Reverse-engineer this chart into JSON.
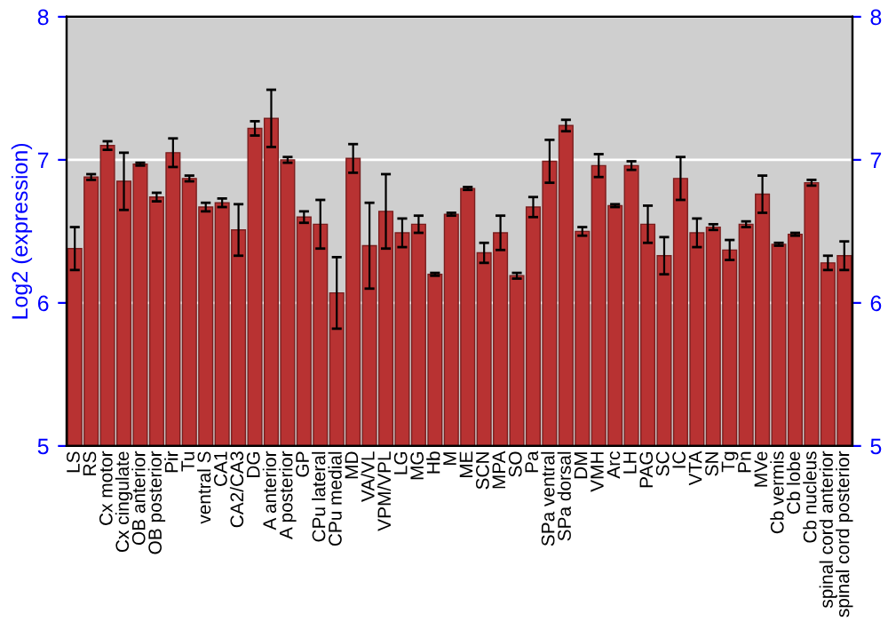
{
  "chart_data": {
    "type": "bar",
    "ylabel": "Log2 (expression)",
    "categories": [
      "LS",
      "RS",
      "Cx motor",
      "Cx cingulate",
      "OB anterior",
      "OB posterior",
      "Pir",
      "Tu",
      "ventral S",
      "CA1",
      "CA2/CA3",
      "DG",
      "A anterior",
      "A posterior",
      "GP",
      "CPu lateral",
      "CPu medial",
      "MD",
      "VA/VL",
      "VPM/VPL",
      "LG",
      "MG",
      "Hb",
      "M",
      "ME",
      "SCN",
      "MPA",
      "SO",
      "Pa",
      "SPa ventral",
      "SPa dorsal",
      "DM",
      "VMH",
      "Arc",
      "LH",
      "PAG",
      "SC",
      "IC",
      "VTA",
      "SN",
      "Tg",
      "Pn",
      "MVe",
      "Cb vermis",
      "Cb lobe",
      "Cb nucleus",
      "spinal cord anterior",
      "spinal cord posterior"
    ],
    "values": [
      6.38,
      6.88,
      7.1,
      6.85,
      6.97,
      6.74,
      7.05,
      6.87,
      6.67,
      6.7,
      6.51,
      7.22,
      7.29,
      7.0,
      6.6,
      6.55,
      6.07,
      7.01,
      6.4,
      6.64,
      6.49,
      6.55,
      6.2,
      6.62,
      6.8,
      6.35,
      6.49,
      6.19,
      6.67,
      6.99,
      7.24,
      6.5,
      6.96,
      6.68,
      6.96,
      6.55,
      6.33,
      6.87,
      6.49,
      6.53,
      6.37,
      6.55,
      6.76,
      6.41,
      6.48,
      6.84,
      6.28,
      6.33
    ],
    "errors": [
      0.15,
      0.02,
      0.03,
      0.2,
      0.01,
      0.03,
      0.1,
      0.02,
      0.03,
      0.03,
      0.18,
      0.05,
      0.2,
      0.02,
      0.04,
      0.17,
      0.25,
      0.1,
      0.3,
      0.26,
      0.1,
      0.06,
      0.01,
      0.01,
      0.01,
      0.07,
      0.12,
      0.02,
      0.07,
      0.15,
      0.04,
      0.03,
      0.08,
      0.01,
      0.03,
      0.13,
      0.13,
      0.15,
      0.1,
      0.02,
      0.07,
      0.02,
      0.13,
      0.01,
      0.01,
      0.02,
      0.05,
      0.1
    ],
    "color": "#b83232",
    "ylim": [
      5,
      8
    ],
    "yticks": [
      5,
      6,
      7,
      8
    ],
    "y2lim": [
      5,
      8
    ],
    "y2ticks": [
      5,
      6,
      7,
      8
    ],
    "grid": "y",
    "legend": false
  }
}
